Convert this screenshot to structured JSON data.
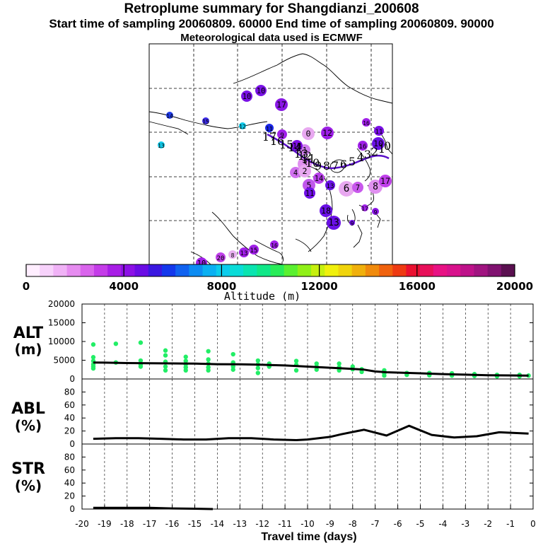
{
  "header": {
    "title": "Retroplume summary for Shangdianzi_200608",
    "sampling": "Start time of sampling 20060809. 60000     End time of sampling 20060809. 90000",
    "met": "Meteorological data used is ECMWF"
  },
  "colorbar": {
    "label": "Altitude (m)",
    "ticks": [
      "0",
      "4000",
      "8000",
      "12000",
      "16000",
      "20000"
    ],
    "colors": [
      "#ffeeff",
      "#f7d2fb",
      "#f0b2f6",
      "#e68cf0",
      "#d964ec",
      "#c43ce8",
      "#a81ee6",
      "#8c10e6",
      "#6a0ce4",
      "#3a18e0",
      "#1438ec",
      "#1062f0",
      "#0c8cf2",
      "#0ab0f2",
      "#0cccec",
      "#0adcd8",
      "#0ae4b0",
      "#10e888",
      "#28ec58",
      "#5af030",
      "#90f018",
      "#c6f00e",
      "#f0f00c",
      "#f0d40c",
      "#f0b00c",
      "#f08a0c",
      "#f0620e",
      "#ee3a12",
      "#ea1030",
      "#e8105a",
      "#e81284",
      "#d8128c",
      "#be128a",
      "#a01480",
      "#801270",
      "#5a1050"
    ]
  },
  "map_labels": [
    {
      "t": "10",
      "c": "#7a12e6"
    },
    {
      "t": "10",
      "c": "#7a12e6"
    },
    {
      "t": "17",
      "c": "#8a18e6"
    },
    {
      "t": "14",
      "c": "#1e3ae8"
    },
    {
      "t": "15",
      "c": "#3a2ae4"
    },
    {
      "t": "12",
      "c": "#10c8e8"
    },
    {
      "t": "13",
      "c": "#10c8e8"
    },
    {
      "t": "11",
      "c": "#1a26e6"
    },
    {
      "t": "9",
      "c": "#a020e8"
    },
    {
      "t": "0",
      "c": "#e8a8f0"
    },
    {
      "t": "12",
      "c": "#9c1ee6"
    },
    {
      "t": "1",
      "c": "#d080ee"
    },
    {
      "t": "18",
      "c": "#8010e6"
    },
    {
      "t": "11",
      "c": "#7a10e6"
    },
    {
      "t": "10",
      "c": "#6a10e6"
    },
    {
      "t": "16",
      "c": "#a020e8"
    },
    {
      "t": "3",
      "c": "#e090f0"
    },
    {
      "t": "4",
      "c": "#d070ee"
    },
    {
      "t": "5",
      "c": "#c058ec"
    },
    {
      "t": "11",
      "c": "#7010e6"
    },
    {
      "t": "6",
      "c": "#e8a8f0"
    },
    {
      "t": "7",
      "c": "#c858ec"
    },
    {
      "t": "8",
      "c": "#e090f0"
    },
    {
      "t": "18",
      "c": "#6a10e6"
    },
    {
      "t": "13",
      "c": "#6a10e6"
    },
    {
      "t": "9",
      "c": "#7010e6"
    },
    {
      "t": "16",
      "c": "#a020e8"
    },
    {
      "t": "17",
      "c": "#c040ea"
    },
    {
      "t": "16",
      "c": "#a020e8"
    },
    {
      "t": "15",
      "c": "#a020e8"
    },
    {
      "t": "13",
      "c": "#a020e8"
    },
    {
      "t": "8",
      "c": "#e8b0f0"
    },
    {
      "t": "20",
      "c": "#c040ea"
    },
    {
      "t": "10",
      "c": "#a020e8"
    },
    {
      "t": "17",
      "c": "#a020e8"
    },
    {
      "t": "13",
      "c": "#6a10e6"
    },
    {
      "t": "2",
      "c": "#e8a8f0"
    },
    {
      "t": "14",
      "c": "#b840ea"
    },
    {
      "t": "9",
      "c": "#8a14e6"
    }
  ],
  "path_numbers": [
    "17",
    "16",
    "15",
    "14",
    "13",
    "12",
    "11",
    "10",
    "9",
    "8",
    "7",
    "6",
    "5",
    "4",
    "3",
    "2",
    "1",
    "0"
  ],
  "chart_data": [
    {
      "type": "scatter",
      "title": "ALT",
      "ylabel": "(m)",
      "ylim": [
        0,
        20000
      ],
      "yticks": [
        "0",
        "5000",
        "10000",
        "15000",
        "20000"
      ],
      "median_line": {
        "x": [
          -19.5,
          -19,
          -18,
          -17,
          -16,
          -15,
          -14,
          -13,
          -12,
          -11,
          -10,
          -9,
          -8,
          -7.5,
          -7,
          -6.5,
          -6,
          -5,
          -4,
          -3,
          -2,
          -1,
          -0.2
        ],
        "y": [
          4400,
          4350,
          4250,
          4200,
          4150,
          4100,
          3950,
          3900,
          3800,
          3600,
          3300,
          3000,
          2700,
          2500,
          2000,
          1800,
          1700,
          1500,
          1300,
          1150,
          1000,
          950,
          900
        ]
      },
      "points": [
        {
          "x": -19.5,
          "y": 9200
        },
        {
          "x": -19.5,
          "y": 5800
        },
        {
          "x": -19.5,
          "y": 4800
        },
        {
          "x": -19.5,
          "y": 3900
        },
        {
          "x": -19.5,
          "y": 3300
        },
        {
          "x": -19.5,
          "y": 2800
        },
        {
          "x": -18.5,
          "y": 9400
        },
        {
          "x": -18.5,
          "y": 4400
        },
        {
          "x": -17.4,
          "y": 9700
        },
        {
          "x": -17.4,
          "y": 4900
        },
        {
          "x": -17.4,
          "y": 3900
        },
        {
          "x": -17.4,
          "y": 3300
        },
        {
          "x": -16.3,
          "y": 7600
        },
        {
          "x": -16.3,
          "y": 6300
        },
        {
          "x": -16.3,
          "y": 4600
        },
        {
          "x": -16.3,
          "y": 3300
        },
        {
          "x": -16.3,
          "y": 2300
        },
        {
          "x": -15.4,
          "y": 5900
        },
        {
          "x": -15.4,
          "y": 4800
        },
        {
          "x": -15.4,
          "y": 3900
        },
        {
          "x": -15.4,
          "y": 3100
        },
        {
          "x": -15.4,
          "y": 2300
        },
        {
          "x": -14.4,
          "y": 7400
        },
        {
          "x": -14.4,
          "y": 5200
        },
        {
          "x": -14.4,
          "y": 4100
        },
        {
          "x": -14.4,
          "y": 3100
        },
        {
          "x": -14.4,
          "y": 2300
        },
        {
          "x": -13.3,
          "y": 6600
        },
        {
          "x": -13.3,
          "y": 4400
        },
        {
          "x": -13.3,
          "y": 3300
        },
        {
          "x": -13.3,
          "y": 2500
        },
        {
          "x": -12.2,
          "y": 4900
        },
        {
          "x": -12.2,
          "y": 3900
        },
        {
          "x": -12.2,
          "y": 2900
        },
        {
          "x": -12.2,
          "y": 1600
        },
        {
          "x": -11.7,
          "y": 4100
        },
        {
          "x": -11.7,
          "y": 3300
        },
        {
          "x": -10.5,
          "y": 4800
        },
        {
          "x": -10.5,
          "y": 3800
        },
        {
          "x": -10.5,
          "y": 2300
        },
        {
          "x": -9.6,
          "y": 4100
        },
        {
          "x": -9.6,
          "y": 3300
        },
        {
          "x": -9.6,
          "y": 2500
        },
        {
          "x": -8.6,
          "y": 4100
        },
        {
          "x": -8.6,
          "y": 3100
        },
        {
          "x": -8.6,
          "y": 2300
        },
        {
          "x": -8,
          "y": 3300
        },
        {
          "x": -8,
          "y": 2600
        },
        {
          "x": -7.6,
          "y": 2600
        },
        {
          "x": -7.6,
          "y": 1900
        },
        {
          "x": -6.6,
          "y": 2300
        },
        {
          "x": -6.6,
          "y": 1500
        },
        {
          "x": -6.6,
          "y": 900
        },
        {
          "x": -5.6,
          "y": 1600
        },
        {
          "x": -5.6,
          "y": 1100
        },
        {
          "x": -4.6,
          "y": 1600
        },
        {
          "x": -4.6,
          "y": 1000
        },
        {
          "x": -3.6,
          "y": 1500
        },
        {
          "x": -3.6,
          "y": 900
        },
        {
          "x": -2.6,
          "y": 1300
        },
        {
          "x": -2.6,
          "y": 800
        },
        {
          "x": -1.6,
          "y": 1100
        },
        {
          "x": -1.6,
          "y": 700
        },
        {
          "x": -0.6,
          "y": 1100
        },
        {
          "x": -0.6,
          "y": 700
        },
        {
          "x": -0.2,
          "y": 900
        }
      ]
    },
    {
      "type": "line",
      "title": "ABL",
      "ylabel": "(%)",
      "ylim": [
        0,
        100
      ],
      "yticks": [
        "0",
        "20",
        "40",
        "60",
        "80"
      ],
      "x": [
        -19.5,
        -18.5,
        -17.5,
        -16.5,
        -15.5,
        -14.5,
        -13.5,
        -12.5,
        -11.5,
        -10.5,
        -10,
        -9,
        -8.5,
        -7.5,
        -6.5,
        -5.5,
        -4.5,
        -3.5,
        -2.5,
        -1.5,
        -0.2
      ],
      "y": [
        8,
        9,
        9,
        8,
        7,
        7,
        9,
        9,
        7,
        6,
        7,
        11,
        15,
        22,
        13,
        28,
        14,
        10,
        12,
        18,
        16
      ]
    },
    {
      "type": "line",
      "title": "STR",
      "ylabel": "(%)",
      "ylim": [
        0,
        100
      ],
      "yticks": [
        "0",
        "20",
        "40",
        "60",
        "80"
      ],
      "x": [
        -19.5,
        -18,
        -17,
        -16,
        -15,
        -14.2
      ],
      "y": [
        2,
        2,
        2,
        1,
        0.5,
        0
      ]
    }
  ],
  "xaxis": {
    "label": "Travel time (days)",
    "range": [
      -20,
      0
    ],
    "ticks": [
      "-20",
      "-19",
      "-18",
      "-17",
      "-16",
      "-15",
      "-14",
      "-13",
      "-12",
      "-11",
      "-10",
      "-9",
      "-8",
      "-7",
      "-6",
      "-5",
      "-4",
      "-3",
      "-2",
      "-1",
      "0"
    ]
  },
  "colors": {
    "scatter": "#22ee66",
    "line": "#000000",
    "path": "#5a10c8"
  }
}
